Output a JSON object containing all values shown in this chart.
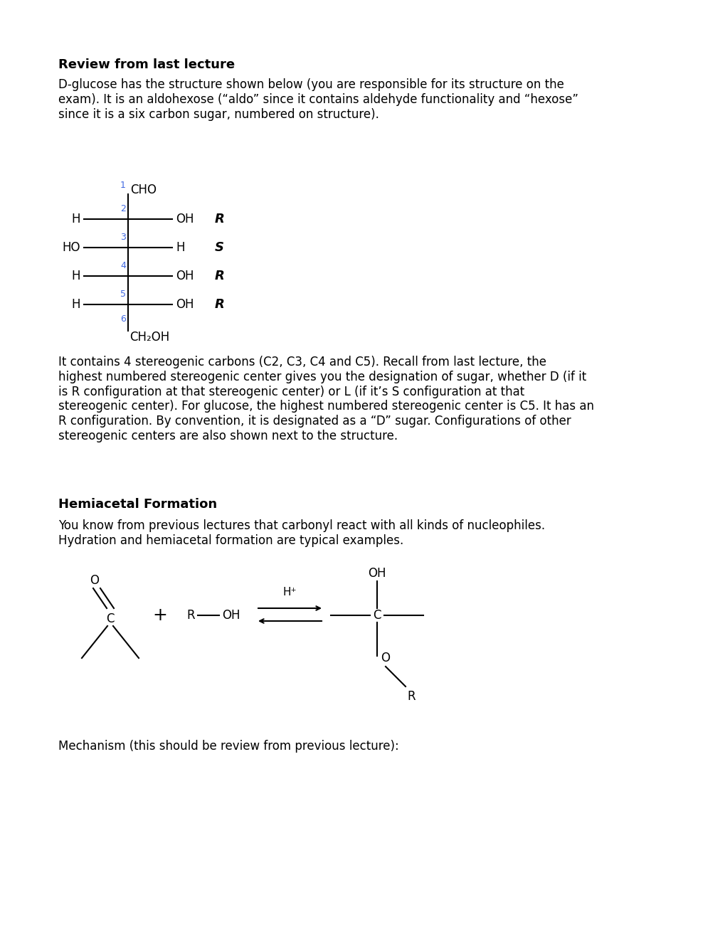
{
  "bg_color": "#ffffff",
  "title_review": "Review from last lecture",
  "para1": "D-glucose has the structure shown below (you are responsible for its structure on the\nexam). It is an aldohexose (“aldo” since it contains aldehyde functionality and “hexose”\nsince it is a six carbon sugar, numbered on structure).",
  "para2": "It contains 4 stereogenic carbons (C2, C3, C4 and C5). Recall from last lecture, the\nhighest numbered stereogenic center gives you the designation of sugar, whether D (if it\nis R configuration at that stereogenic center) or L (if it’s S configuration at that\nstereogenic center). For glucose, the highest numbered stereogenic center is C5. It has an\nR configuration. By convention, it is designated as a “D” sugar. Configurations of other\nstereogenic centers are also shown next to the structure.",
  "title_hemiacetal": "Hemiacetal Formation",
  "para3": "You know from previous lectures that carbonyl react with all kinds of nucleophiles.\nHydration and hemiacetal formation are typical examples.",
  "para4": "Mechanism (this should be review from previous lecture):",
  "text_fontsize": 12,
  "bold_fontsize": 13
}
